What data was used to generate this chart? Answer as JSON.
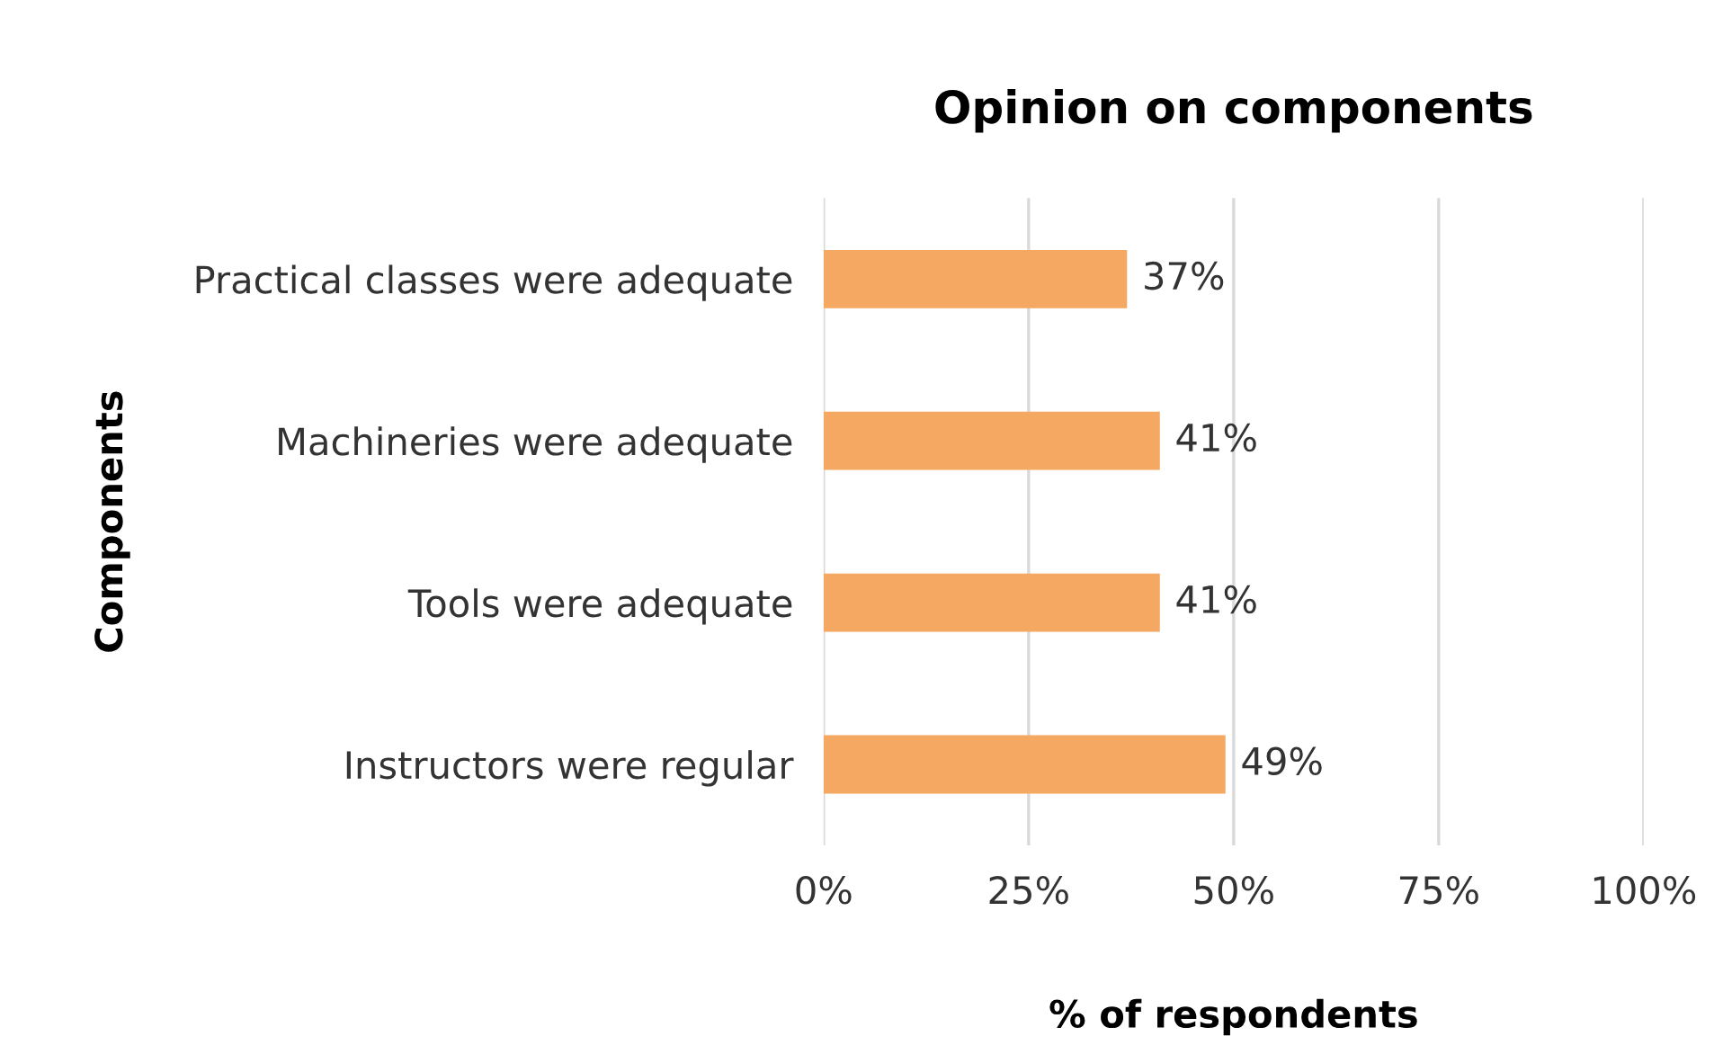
{
  "chart_data": {
    "type": "bar",
    "orientation": "horizontal",
    "title": "Opinion on components",
    "xlabel": "% of respondents",
    "ylabel": "Components",
    "categories": [
      "Practical classes were adequate",
      "Machineries were adequate",
      "Tools were adequate",
      "Instructors were regular"
    ],
    "values": [
      37,
      41,
      41,
      49
    ],
    "value_labels": [
      "37%",
      "41%",
      "41%",
      "49%"
    ],
    "color": "#f4a862",
    "xlim": [
      0,
      100
    ],
    "xticks": [
      {
        "value": 0,
        "label": "0%"
      },
      {
        "value": 25,
        "label": "25%"
      },
      {
        "value": 50,
        "label": "50%"
      },
      {
        "value": 75,
        "label": "75%"
      },
      {
        "value": 100,
        "label": "100%"
      }
    ],
    "grid": "x",
    "legend": false
  }
}
